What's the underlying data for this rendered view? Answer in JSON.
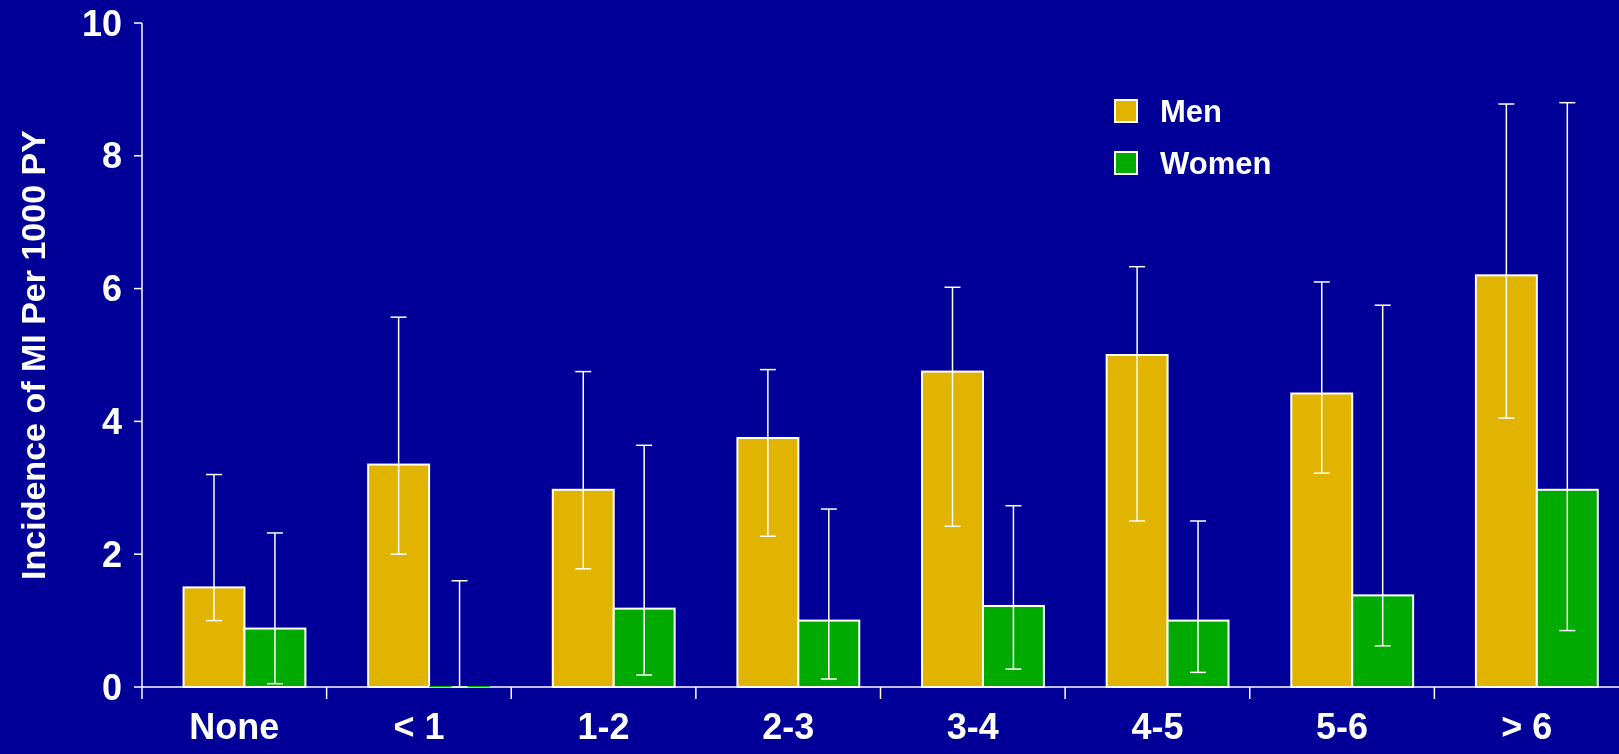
{
  "chart_data": {
    "type": "bar",
    "ylabel": "Incidence of MI Per 1000 PY",
    "categories": [
      "None",
      "< 1",
      "1-2",
      "2-3",
      "3-4",
      "4-5",
      "5-6",
      "> 6"
    ],
    "series": [
      {
        "name": "Men",
        "color": "#e0b400",
        "values": [
          1.5,
          3.35,
          2.97,
          3.75,
          4.75,
          5.0,
          4.42,
          6.2
        ],
        "errors": [
          [
            1.0,
            3.2
          ],
          [
            2.0,
            5.57
          ],
          [
            1.78,
            4.75
          ],
          [
            2.27,
            4.78
          ],
          [
            2.42,
            6.02
          ],
          [
            2.5,
            6.33
          ],
          [
            3.22,
            6.1
          ],
          [
            4.05,
            8.78
          ]
        ]
      },
      {
        "name": "Women",
        "color": "#00aa00",
        "values": [
          0.88,
          0,
          1.18,
          1.0,
          1.22,
          1.0,
          1.38,
          2.97
        ],
        "errors": [
          [
            0.05,
            2.32
          ],
          [
            0,
            1.6
          ],
          [
            0.18,
            3.64
          ],
          [
            0.12,
            2.68
          ],
          [
            0.27,
            2.73
          ],
          [
            0.22,
            2.5
          ],
          [
            0.62,
            5.75
          ],
          [
            0.85,
            8.8
          ]
        ]
      }
    ],
    "ylim": [
      0,
      10
    ],
    "yticks": [
      0,
      2,
      4,
      6,
      8,
      10
    ],
    "legend": "top right"
  }
}
